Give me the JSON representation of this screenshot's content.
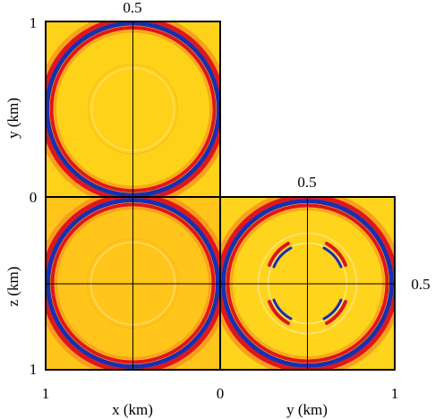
{
  "figure": {
    "colors": {
      "background_field": "#FFD21A",
      "background_field_top": "#FFD21A",
      "background_field_front": "#FFC51A",
      "background_field_side": "#FFD41C",
      "positive": "#E0161A",
      "negative": "#1A2FB0",
      "transition": "#F58A1E",
      "frame": "#000000"
    },
    "top_panel": {
      "ylabel": "y (km)",
      "y_tick_top": "1",
      "y_tick_bottom": "0",
      "slice_label": "0.5"
    },
    "front_panel": {
      "zlabel": "z (km)",
      "z_tick_bottom": "1",
      "xlabel": "x (km)",
      "x_tick_left": "1",
      "x_tick_right": "0"
    },
    "side_panel": {
      "xlabel": "y (km)",
      "x_tick_left": "0",
      "x_tick_right": "1",
      "slice_label_top": "0.5",
      "slice_label_right": "0.5"
    }
  }
}
